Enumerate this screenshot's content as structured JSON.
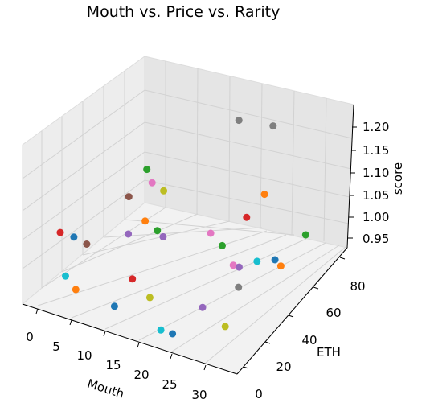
{
  "chart_data": {
    "type": "scatter3d",
    "title": "Mouth vs. Price vs. Rarity",
    "xlabel": "Mouth",
    "ylabel": "ETH",
    "zlabel": "score",
    "xticks": [
      "0",
      "5",
      "10",
      "15",
      "20",
      "25",
      "30"
    ],
    "yticks": [
      "0",
      "20",
      "40",
      "60",
      "80"
    ],
    "zticks": [
      "0.95",
      "1.00",
      "1.05",
      "1.10",
      "1.15",
      "1.20"
    ],
    "grid": true,
    "legend": "none",
    "points": [
      {
        "x": 1,
        "y": 8,
        "z": 1.04,
        "color": "#d62728"
      },
      {
        "x": 4,
        "y": 5,
        "z": 1.05,
        "color": "#1f77b4"
      },
      {
        "x": 6,
        "y": 6,
        "z": 1.04,
        "color": "#8c564b"
      },
      {
        "x": 3,
        "y": 3,
        "z": 0.96,
        "color": "#17becf"
      },
      {
        "x": 5,
        "y": 2,
        "z": 0.94,
        "color": "#ff7f0e"
      },
      {
        "x": 8,
        "y": 30,
        "z": 1.1,
        "color": "#8c564b"
      },
      {
        "x": 10,
        "y": 35,
        "z": 1.16,
        "color": "#2ca02c"
      },
      {
        "x": 12,
        "y": 30,
        "z": 1.15,
        "color": "#e377c2"
      },
      {
        "x": 14,
        "y": 30,
        "z": 1.14,
        "color": "#bcbd22"
      },
      {
        "x": 9,
        "y": 25,
        "z": 1.03,
        "color": "#9467bd"
      },
      {
        "x": 13,
        "y": 20,
        "z": 1.09,
        "color": "#ff7f0e"
      },
      {
        "x": 14,
        "y": 25,
        "z": 1.06,
        "color": "#2ca02c"
      },
      {
        "x": 15,
        "y": 25,
        "z": 1.05,
        "color": "#9467bd"
      },
      {
        "x": 13,
        "y": 10,
        "z": 0.98,
        "color": "#d62728"
      },
      {
        "x": 11,
        "y": 5,
        "z": 0.92,
        "color": "#1f77b4"
      },
      {
        "x": 16,
        "y": 10,
        "z": 0.95,
        "color": "#bcbd22"
      },
      {
        "x": 16,
        "y": 80,
        "z": 1.19,
        "color": "#7f7f7f"
      },
      {
        "x": 19,
        "y": 5,
        "z": 0.9,
        "color": "#17becf"
      },
      {
        "x": 21,
        "y": 5,
        "z": 0.9,
        "color": "#1f77b4"
      },
      {
        "x": 23,
        "y": 75,
        "z": 1.22,
        "color": "#7f7f7f"
      },
      {
        "x": 21,
        "y": 35,
        "z": 1.06,
        "color": "#e377c2"
      },
      {
        "x": 23,
        "y": 35,
        "z": 1.04,
        "color": "#2ca02c"
      },
      {
        "x": 25,
        "y": 45,
        "z": 1.09,
        "color": "#d62728"
      },
      {
        "x": 27,
        "y": 50,
        "z": 1.14,
        "color": "#ff7f0e"
      },
      {
        "x": 24,
        "y": 15,
        "z": 0.95,
        "color": "#9467bd"
      },
      {
        "x": 26,
        "y": 30,
        "z": 1.02,
        "color": "#e377c2"
      },
      {
        "x": 27,
        "y": 30,
        "z": 1.02,
        "color": "#9467bd"
      },
      {
        "x": 28,
        "y": 25,
        "z": 0.99,
        "color": "#7f7f7f"
      },
      {
        "x": 29,
        "y": 35,
        "z": 1.03,
        "color": "#17becf"
      },
      {
        "x": 31,
        "y": 40,
        "z": 1.03,
        "color": "#1f77b4"
      },
      {
        "x": 32,
        "y": 40,
        "z": 1.02,
        "color": "#ff7f0e"
      },
      {
        "x": 29,
        "y": 10,
        "z": 0.94,
        "color": "#bcbd22"
      },
      {
        "x": 33,
        "y": 55,
        "z": 1.06,
        "color": "#2ca02c"
      }
    ]
  }
}
